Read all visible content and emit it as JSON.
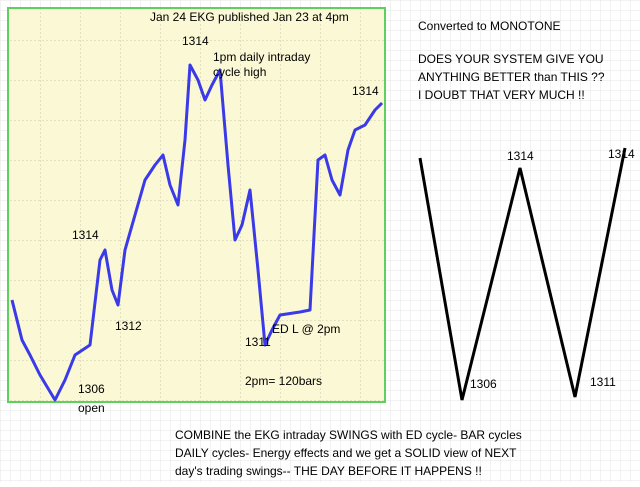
{
  "chart_title": "Jan 24 EKG published Jan 23 at 4pm",
  "annotations": [
    "1314",
    "1pm daily intraday",
    "cycle high",
    "1314",
    "1314",
    "1312",
    "ED L @ 2pm",
    "1311",
    "2pm= 120bars",
    "1306",
    "open"
  ],
  "right_panel": {
    "heading": "Converted to MONOTONE",
    "lines": [
      "DOES YOUR SYSTEM GIVE YOU",
      "ANYTHING BETTER than THIS ??",
      "I DOUBT THAT VERY MUCH !!"
    ],
    "labels": [
      "1314",
      "1314",
      "1306",
      "1311"
    ]
  },
  "footer": {
    "lines": [
      "COMBINE the EKG intraday SWINGS with ED cycle- BAR cycles",
      "DAILY cycles- Energy effects and we get a SOLID view of NEXT",
      "day's trading swings-- THE DAY BEFORE IT HAPPENS !!"
    ]
  }
}
